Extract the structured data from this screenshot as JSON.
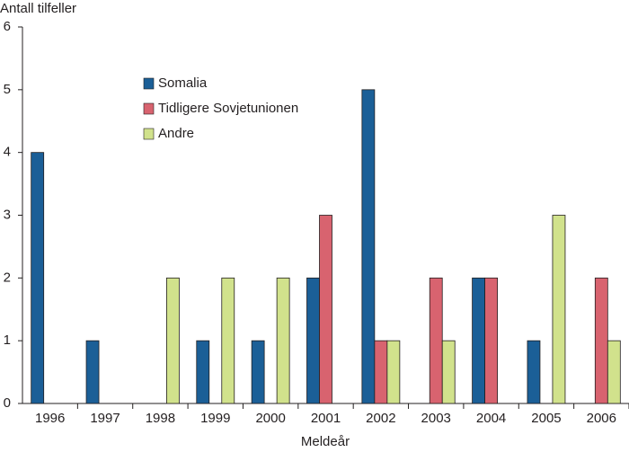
{
  "chart_data": {
    "type": "bar",
    "y_label": "Antall tilfeller",
    "x_label": "Meldeår",
    "categories": [
      "1996",
      "1997",
      "1998",
      "1999",
      "2000",
      "2001",
      "2002",
      "2003",
      "2004",
      "2005",
      "2006"
    ],
    "series": [
      {
        "name": "Somalia",
        "color": "#1b5f97",
        "values": [
          4,
          1,
          0,
          1,
          1,
          2,
          5,
          0,
          2,
          1,
          0
        ]
      },
      {
        "name": "Tidligere Sovjetunionen",
        "color": "#d8636f",
        "values": [
          0,
          0,
          0,
          0,
          0,
          3,
          1,
          2,
          2,
          0,
          2
        ]
      },
      {
        "name": "Andre",
        "color": "#d1e28c",
        "values": [
          0,
          0,
          2,
          2,
          2,
          0,
          1,
          1,
          0,
          3,
          1
        ]
      }
    ],
    "ylim": [
      0,
      6
    ],
    "yticks": [
      0,
      1,
      2,
      3,
      4,
      5,
      6
    ]
  }
}
